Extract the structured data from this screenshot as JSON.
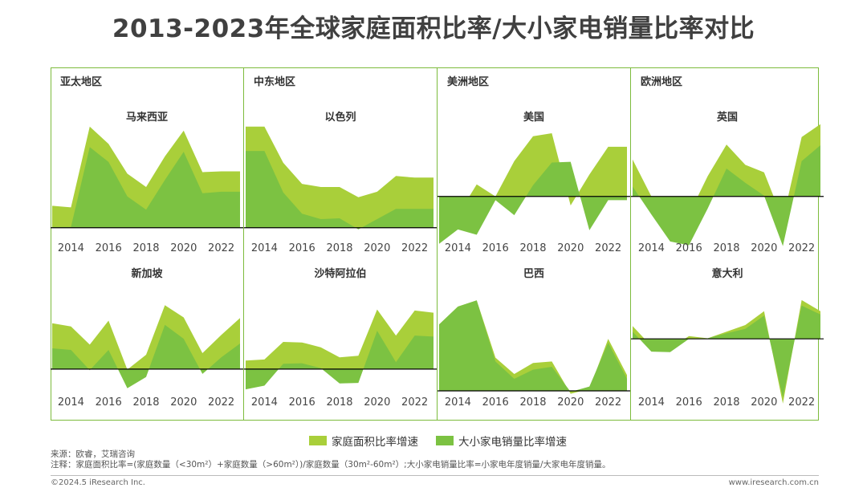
{
  "title": "2013-2023年全球家庭面积比率/大小家电销量比率对比",
  "regions": [
    "亚太地区",
    "中东地区",
    "美洲地区",
    "欧洲地区"
  ],
  "legend": [
    {
      "label": "家庭面积比率增速",
      "color": "#a9cf3a"
    },
    {
      "label": "大小家电销量比率增速",
      "color": "#7cc242"
    }
  ],
  "colors": {
    "frame": "#7dbb3c",
    "series1": "#a9cf3a",
    "series2": "#7cc242",
    "zero_line": "#000000"
  },
  "notes": {
    "source": "来源：欧睿，艾瑞咨询",
    "note": "注释：家庭面积比率=(家庭数量（<30m²）+家庭数量（>60m²）)/家庭数量（30m²-60m²）;大小家电销量比率=小家电年度销量/大家电年度销量。"
  },
  "footer": {
    "copyright": "©2024.5 iResearch Inc.",
    "site": "www.iresearch.com.cn"
  },
  "chart_data": [
    {
      "type": "area",
      "title": "马来西亚",
      "region_label": "亚太地区",
      "x": [
        2013,
        2014,
        2015,
        2016,
        2017,
        2018,
        2019,
        2020,
        2021,
        2022,
        2023
      ],
      "xticks": [
        "2014",
        "2016",
        "2018",
        "2020",
        "2022"
      ],
      "ylim": [
        -3.2,
        13.6
      ],
      "series": [
        {
          "name": "家庭面积比率增速",
          "values": [
            2.8,
            2.6,
            12.9,
            10.7,
            6.9,
            5.2,
            9.1,
            12.4,
            7.1,
            7.2,
            7.2
          ]
        },
        {
          "name": "大小家电销量比率增速",
          "values": [
            0.1,
            0.1,
            10.3,
            8.4,
            4.0,
            2.3,
            6.1,
            9.7,
            4.4,
            4.6,
            4.6
          ]
        }
      ]
    },
    {
      "type": "area",
      "title": "以色列",
      "region_label": "中东地区",
      "x": [
        2013,
        2014,
        2015,
        2016,
        2017,
        2018,
        2019,
        2020,
        2021,
        2022,
        2023
      ],
      "xticks": [
        "2014",
        "2016",
        "2018",
        "2020",
        "2022"
      ],
      "ylim": [
        -3.2,
        13.6
      ],
      "series": [
        {
          "name": "家庭面积比率增速",
          "values": [
            12.9,
            12.9,
            8.3,
            5.6,
            5.2,
            5.2,
            3.9,
            4.6,
            6.6,
            6.4,
            6.4
          ]
        },
        {
          "name": "大小家电销量比率增速",
          "values": [
            9.8,
            9.8,
            4.5,
            1.8,
            1.1,
            1.2,
            -0.2,
            1.1,
            2.4,
            2.4,
            2.4
          ]
        }
      ]
    },
    {
      "type": "area",
      "title": "美国",
      "region_label": "美洲地区",
      "x": [
        2013,
        2014,
        2015,
        2016,
        2017,
        2018,
        2019,
        2020,
        2021,
        2022,
        2023
      ],
      "xticks": [
        "2014",
        "2016",
        "2018",
        "2020",
        "2022"
      ],
      "ylim": [
        -7.5,
        10.0
      ],
      "series": [
        {
          "name": "家庭面积比率增速",
          "values": [
            -2.5,
            -2.5,
            1.6,
            0.0,
            4.7,
            8.0,
            8.4,
            -1.2,
            2.9,
            6.6,
            6.6
          ]
        },
        {
          "name": "大小家电销量比率增速",
          "values": [
            -6.3,
            -4.4,
            -5.1,
            -0.5,
            -2.5,
            1.5,
            4.5,
            4.6,
            -4.5,
            -0.5,
            -0.5
          ]
        }
      ]
    },
    {
      "type": "area",
      "title": "英国",
      "region_label": "欧洲地区",
      "x": [
        2013,
        2014,
        2015,
        2016,
        2017,
        2018,
        2019,
        2020,
        2021,
        2022,
        2023
      ],
      "xticks": [
        "2014",
        "2016",
        "2018",
        "2020",
        "2022"
      ],
      "ylim": [
        -7.5,
        10.0
      ],
      "series": [
        {
          "name": "家庭面积比率增速",
          "values": [
            4.9,
            0.0,
            -2.2,
            -2.4,
            2.7,
            6.9,
            4.2,
            3.2,
            -3.1,
            7.9,
            9.6
          ]
        },
        {
          "name": "大小家电销量比率增速",
          "values": [
            1.3,
            -2.4,
            -6.0,
            -6.5,
            -1.6,
            3.7,
            1.8,
            0.1,
            -6.6,
            4.7,
            6.8
          ]
        }
      ]
    },
    {
      "type": "area",
      "title": "新加坡",
      "region_label": "",
      "x": [
        2013,
        2014,
        2015,
        2016,
        2017,
        2018,
        2019,
        2020,
        2021,
        2022,
        2023
      ],
      "xticks": [
        "2014",
        "2016",
        "2018",
        "2020",
        "2022"
      ],
      "ylim": [
        -6.8,
        14.0
      ],
      "series": [
        {
          "name": "家庭面积比率增速",
          "values": [
            8.6,
            8.0,
            4.6,
            9.1,
            -0.1,
            2.7,
            12.0,
            9.7,
            3.0,
            6.4,
            9.6
          ]
        },
        {
          "name": "大小家电销量比率增速",
          "values": [
            3.9,
            3.6,
            -0.2,
            3.6,
            -3.6,
            -1.5,
            8.3,
            5.7,
            -0.9,
            2.2,
            4.8
          ]
        }
      ]
    },
    {
      "type": "area",
      "title": "沙特阿拉伯",
      "region_label": "",
      "x": [
        2013,
        2014,
        2015,
        2016,
        2017,
        2018,
        2019,
        2020,
        2021,
        2022,
        2023
      ],
      "xticks": [
        "2014",
        "2016",
        "2018",
        "2020",
        "2022"
      ],
      "ylim": [
        -6.8,
        14.0
      ],
      "series": [
        {
          "name": "家庭面积比率增速",
          "values": [
            1.6,
            1.8,
            5.1,
            5.0,
            4.1,
            2.2,
            2.5,
            11.2,
            6.3,
            11.0,
            10.6
          ]
        },
        {
          "name": "大小家电销量比率增速",
          "values": [
            -3.8,
            -3.1,
            1.0,
            1.1,
            0.2,
            -2.7,
            -2.6,
            7.2,
            1.3,
            6.3,
            6.1
          ]
        }
      ]
    },
    {
      "type": "area",
      "title": "巴西",
      "region_label": "",
      "x": [
        2013,
        2014,
        2015,
        2016,
        2017,
        2018,
        2019,
        2020,
        2021,
        2022,
        2023
      ],
      "xticks": [
        "2014",
        "2016",
        "2018",
        "2020",
        "2022"
      ],
      "ylim": [
        -3.0,
        20.0
      ],
      "series": [
        {
          "name": "家庭面积比率增速",
          "values": [
            13.8,
            17.5,
            18.8,
            6.9,
            3.5,
            5.8,
            6.1,
            -0.6,
            0.4,
            10.8,
            3.3
          ]
        },
        {
          "name": "大小家电销量比率增速",
          "values": [
            13.8,
            17.5,
            18.8,
            6.1,
            2.5,
            4.4,
            5.0,
            -0.2,
            0.9,
            10.0,
            2.5
          ]
        }
      ]
    },
    {
      "type": "area",
      "title": "意大利",
      "region_label": "",
      "x": [
        2013,
        2014,
        2015,
        2016,
        2017,
        2018,
        2019,
        2020,
        2021,
        2022,
        2023
      ],
      "xticks": [
        "2014",
        "2016",
        "2018",
        "2020",
        "2022"
      ],
      "ylim": [
        -12.0,
        8.0
      ],
      "series": [
        {
          "name": "家庭面积比率增速",
          "values": [
            2.3,
            -1.3,
            -1.7,
            0.5,
            0.1,
            1.3,
            2.5,
            5.0,
            -11.7,
            7.0,
            5.0
          ]
        },
        {
          "name": "大小家电销量比率增速",
          "values": [
            1.3,
            -2.3,
            -2.4,
            0.0,
            0.1,
            1.0,
            1.8,
            4.2,
            -10.6,
            6.0,
            4.4
          ]
        }
      ]
    }
  ]
}
